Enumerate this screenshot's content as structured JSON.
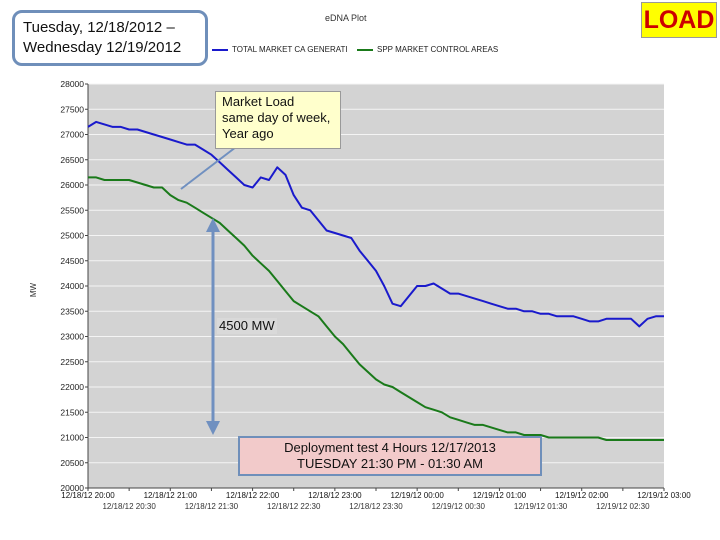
{
  "header": {
    "date_line1": "Tuesday, 12/18/2012 –",
    "date_line2": "Wednesday 12/19/2012",
    "slide_label": "LOAD"
  },
  "annotations": {
    "market_load_line1": "Market Load",
    "market_load_line2": "same day of week,",
    "market_load_line3": "Year ago",
    "difference": "4500 MW",
    "deployment_line1": "Deployment test   4 Hours   12/17/2013",
    "deployment_line2": "TUESDAY   21:30 PM  -  01:30 AM"
  },
  "colors": {
    "series_blue": "#1a1acc",
    "series_green": "#1a7a1a",
    "plot_bg": "#d3d3d3",
    "arrow": "#7090c0"
  },
  "chart_data": {
    "type": "line",
    "title": "eDNA Plot",
    "ylabel": "MW",
    "ylim": [
      20000,
      28000
    ],
    "y_ticks": [
      20000,
      20500,
      21000,
      21500,
      22000,
      22500,
      23000,
      23500,
      24000,
      24500,
      25000,
      25500,
      26000,
      26500,
      27000,
      27500,
      28000
    ],
    "y_tick_labels": [
      "20000",
      "20500",
      "21000",
      "21500",
      "22000",
      "22500",
      "23000",
      "23500",
      "24000",
      "24500",
      "25000",
      "25500",
      "26000",
      "26500",
      "27000",
      "27500",
      "28000"
    ],
    "x_tick_labels_row1": [
      "12/18/12 20:00",
      "12/18/12 21:00",
      "12/18/12 22:00",
      "12/18/12 23:00",
      "12/19/12 00:00",
      "12/19/12 01:00",
      "12/19/12 02:00",
      "12/19/12 03:00"
    ],
    "x_tick_labels_row2": [
      "12/18/12 20:30",
      "12/18/12 21:30",
      "12/18/12 22:30",
      "12/18/12 23:30",
      "12/19/12 00:30",
      "12/19/12 01:30",
      "12/19/12 02:30"
    ],
    "x_range_hours": [
      0,
      7
    ],
    "series": [
      {
        "name": "TOTAL MARKET CA GENERATI",
        "color": "#1a1acc",
        "x": [
          0,
          0.1,
          0.2,
          0.3,
          0.4,
          0.5,
          0.6,
          0.7,
          0.8,
          0.9,
          1.0,
          1.1,
          1.2,
          1.3,
          1.4,
          1.5,
          1.6,
          1.7,
          1.8,
          1.9,
          2.0,
          2.1,
          2.2,
          2.3,
          2.4,
          2.5,
          2.6,
          2.7,
          2.8,
          2.9,
          3.0,
          3.1,
          3.2,
          3.3,
          3.4,
          3.5,
          3.6,
          3.7,
          3.8,
          3.9,
          4.0,
          4.1,
          4.2,
          4.3,
          4.4,
          4.5,
          4.6,
          4.7,
          4.8,
          4.9,
          5.0,
          5.1,
          5.2,
          5.3,
          5.4,
          5.5,
          5.6,
          5.7,
          5.8,
          5.9,
          6.0,
          6.1,
          6.2,
          6.3,
          6.4,
          6.5,
          6.6,
          6.7,
          6.8,
          6.9,
          7.0
        ],
        "values": [
          27150,
          27250,
          27200,
          27150,
          27150,
          27100,
          27100,
          27050,
          27000,
          26950,
          26900,
          26850,
          26800,
          26800,
          26700,
          26600,
          26450,
          26300,
          26150,
          26000,
          25950,
          26150,
          26100,
          26350,
          26200,
          25800,
          25550,
          25500,
          25300,
          25100,
          25050,
          25000,
          24950,
          24700,
          24500,
          24300,
          24000,
          23650,
          23600,
          23800,
          24000,
          24000,
          24050,
          23950,
          23850,
          23850,
          23800,
          23750,
          23700,
          23650,
          23600,
          23550,
          23550,
          23500,
          23500,
          23450,
          23450,
          23400,
          23400,
          23400,
          23350,
          23300,
          23300,
          23350,
          23350,
          23350,
          23350,
          23200,
          23350,
          23400,
          23400
        ]
      },
      {
        "name": "SPP MARKET CONTROL AREAS",
        "color": "#1a7a1a",
        "x": [
          0,
          0.1,
          0.2,
          0.3,
          0.4,
          0.5,
          0.6,
          0.7,
          0.8,
          0.9,
          1.0,
          1.1,
          1.2,
          1.3,
          1.4,
          1.5,
          1.6,
          1.7,
          1.8,
          1.9,
          2.0,
          2.1,
          2.2,
          2.3,
          2.4,
          2.5,
          2.6,
          2.7,
          2.8,
          2.9,
          3.0,
          3.1,
          3.2,
          3.3,
          3.4,
          3.5,
          3.6,
          3.7,
          3.8,
          3.9,
          4.0,
          4.1,
          4.2,
          4.3,
          4.4,
          4.5,
          4.6,
          4.7,
          4.8,
          4.9,
          5.0,
          5.1,
          5.2,
          5.3,
          5.4,
          5.5,
          5.6,
          5.7,
          5.8,
          5.9,
          6.0,
          6.1,
          6.2,
          6.3,
          6.4,
          6.5,
          6.6,
          6.7,
          6.8,
          6.9,
          7.0
        ],
        "values": [
          26150,
          26150,
          26100,
          26100,
          26100,
          26100,
          26050,
          26000,
          25950,
          25950,
          25800,
          25700,
          25650,
          25550,
          25450,
          25350,
          25250,
          25100,
          24950,
          24800,
          24600,
          24450,
          24300,
          24100,
          23900,
          23700,
          23600,
          23500,
          23400,
          23200,
          23000,
          22850,
          22650,
          22450,
          22300,
          22150,
          22050,
          22000,
          21900,
          21800,
          21700,
          21600,
          21550,
          21500,
          21400,
          21350,
          21300,
          21250,
          21250,
          21200,
          21150,
          21100,
          21100,
          21050,
          21050,
          21050,
          21000,
          21000,
          21000,
          21000,
          21000,
          21000,
          21000,
          20950,
          20950,
          20950,
          20950,
          20950,
          20950,
          20950,
          20950
        ]
      }
    ]
  }
}
